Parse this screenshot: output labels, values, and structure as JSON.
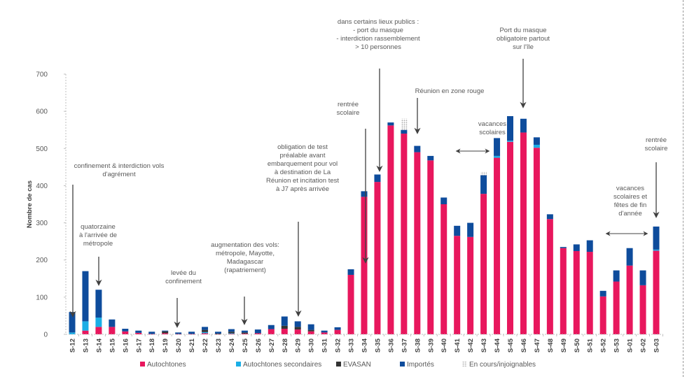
{
  "chart_data": {
    "type": "bar",
    "stacked": true,
    "title": "",
    "xlabel": "",
    "ylabel": "Nombre de cas",
    "ylim": [
      0,
      700
    ],
    "yticks": [
      0,
      100,
      200,
      300,
      400,
      500,
      600,
      700
    ],
    "grid": false,
    "legend_position": "bottom",
    "categories": [
      "S-12",
      "S-13",
      "S-14",
      "S-15",
      "S-16",
      "S-17",
      "S-18",
      "S-19",
      "S-20",
      "S-21",
      "S-22",
      "S-23",
      "S-24",
      "S-25",
      "S-26",
      "S-27",
      "S-28",
      "S-29",
      "S-30",
      "S-31",
      "S-32",
      "S-33",
      "S-34",
      "S-35",
      "S-36",
      "S-37",
      "S-38",
      "S-39",
      "S-40",
      "S-41",
      "S-42",
      "S-43",
      "S-44",
      "S-45",
      "S-46",
      "S-47",
      "S-48",
      "S-49",
      "S-50",
      "S-51",
      "S-52",
      "S-53",
      "S-01",
      "S-02",
      "S-03"
    ],
    "series": [
      {
        "name": "Autochtones",
        "color": "#e8175d",
        "values": [
          0,
          10,
          20,
          20,
          8,
          4,
          1,
          3,
          1,
          1,
          3,
          1,
          2,
          2,
          3,
          14,
          15,
          13,
          8,
          5,
          12,
          160,
          370,
          410,
          562,
          540,
          490,
          468,
          350,
          265,
          262,
          378,
          475,
          518,
          543,
          502,
          310,
          232,
          224,
          222,
          102,
          142,
          185,
          132,
          225
        ]
      },
      {
        "name": "Autochtones secondaires",
        "color": "#1aaee6",
        "values": [
          5,
          25,
          25,
          0,
          0,
          0,
          0,
          0,
          0,
          0,
          3,
          0,
          1,
          0,
          0,
          0,
          0,
          0,
          0,
          0,
          0,
          0,
          0,
          0,
          0,
          0,
          0,
          0,
          0,
          0,
          0,
          0,
          5,
          3,
          0,
          8,
          0,
          0,
          0,
          0,
          0,
          0,
          0,
          0,
          3
        ]
      },
      {
        "name": "EVASAN",
        "color": "#333333",
        "values": [
          0,
          0,
          0,
          0,
          0,
          0,
          0,
          5,
          0,
          0,
          6,
          1,
          4,
          3,
          0,
          0,
          8,
          7,
          4,
          0,
          0,
          0,
          0,
          0,
          0,
          0,
          0,
          0,
          0,
          0,
          0,
          0,
          0,
          0,
          0,
          0,
          0,
          0,
          0,
          0,
          0,
          0,
          0,
          0,
          0
        ]
      },
      {
        "name": "Importés",
        "color": "#0e4c9c",
        "values": [
          55,
          135,
          75,
          20,
          7,
          6,
          6,
          2,
          4,
          6,
          8,
          5,
          7,
          5,
          10,
          11,
          25,
          15,
          15,
          5,
          7,
          15,
          15,
          20,
          8,
          10,
          17,
          12,
          18,
          27,
          38,
          50,
          48,
          66,
          37,
          20,
          13,
          3,
          18,
          31,
          15,
          30,
          47,
          40,
          62
        ]
      },
      {
        "name": "En cours/injoignables",
        "color": "#bfbfbf",
        "values": [
          0,
          0,
          0,
          0,
          0,
          0,
          0,
          0,
          0,
          0,
          0,
          0,
          0,
          0,
          0,
          0,
          0,
          0,
          0,
          0,
          0,
          0,
          0,
          0,
          0,
          30,
          0,
          0,
          0,
          0,
          0,
          10,
          0,
          0,
          0,
          0,
          0,
          0,
          0,
          0,
          0,
          0,
          0,
          0,
          0
        ]
      }
    ],
    "annotations": [
      {
        "id": "a1",
        "lines": [
          "confinement &  interdiction vols",
          "d'agrément"
        ],
        "target": "S-12",
        "arrow": "down"
      },
      {
        "id": "a2",
        "lines": [
          "quatorzaine",
          "à l'arrivée de",
          "métropole"
        ],
        "target": "S-14",
        "arrow": "down"
      },
      {
        "id": "a3",
        "lines": [
          "levée du",
          "confinement"
        ],
        "target": "S-20",
        "arrow": "down"
      },
      {
        "id": "a4",
        "lines": [
          "augmentation des vols:",
          "métropole, Mayotte,",
          "Madagascar",
          "(rapatriement)"
        ],
        "target": "S-25",
        "arrow": "down"
      },
      {
        "id": "a5",
        "lines": [
          "obligation de test",
          "préalable avant",
          "embarquement pour vol",
          "à destination de La",
          "Réunion et incitation test",
          "à J7 après arrivée"
        ],
        "target": "S-29",
        "arrow": "down"
      },
      {
        "id": "a6",
        "lines": [
          "rentrée",
          "scolaire"
        ],
        "target": "S-34",
        "arrow": "down"
      },
      {
        "id": "a7",
        "lines": [
          "dans certains lieux publics :",
          "- port du masque",
          "- interdiction rassemblement",
          "> 10 personnes"
        ],
        "target": "S-35",
        "arrow": "down"
      },
      {
        "id": "a8",
        "lines": [
          "Réunion en zone rouge"
        ],
        "target": "S-38",
        "arrow": "down"
      },
      {
        "id": "a9",
        "lines": [
          "vacances",
          "scolaires"
        ],
        "target": "S-41–S-43",
        "arrow": "both"
      },
      {
        "id": "a10",
        "lines": [
          "Port du masque",
          "obligatoire partout",
          "sur l'île"
        ],
        "target": "S-46",
        "arrow": "down"
      },
      {
        "id": "a11",
        "lines": [
          "vacances",
          "scolaires et",
          "fêtes de fin",
          "d'année"
        ],
        "target": "S-52–S-02",
        "arrow": "both"
      },
      {
        "id": "a12",
        "lines": [
          "rentrée",
          "scolaire"
        ],
        "target": "S-03",
        "arrow": "down"
      }
    ]
  }
}
